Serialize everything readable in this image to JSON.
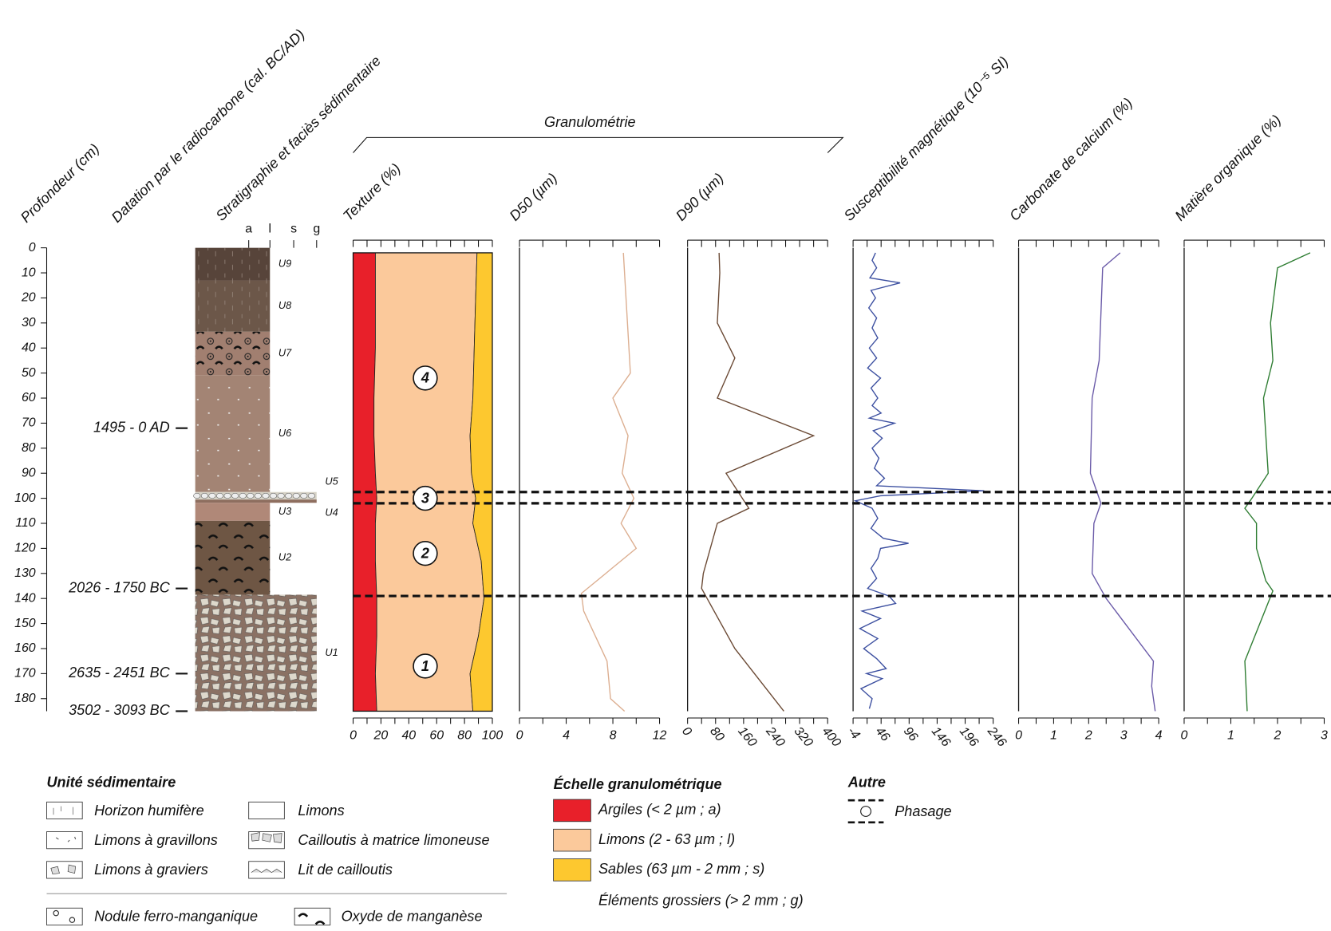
{
  "chart_data": [
    {
      "type": "depth-axis",
      "title": "Profondeur (cm)",
      "ylim": [
        0,
        185
      ],
      "yticks": [
        0,
        10,
        20,
        30,
        40,
        50,
        60,
        70,
        80,
        90,
        100,
        110,
        120,
        130,
        140,
        150,
        160,
        170,
        180
      ]
    },
    {
      "type": "dates",
      "title": "Datation par le radiocarbone (cal. BC/AD)",
      "labels": [
        "1495 - 0 AD",
        "2026 - 1750 BC",
        "2635 - 2451 BC",
        "3502 - 3093 BC"
      ],
      "depths": [
        72,
        136,
        170,
        185
      ]
    },
    {
      "type": "strat",
      "title": "Stratigraphie et faciès sédimentaire",
      "columns": [
        "a",
        "l",
        "s",
        "g"
      ],
      "units": [
        {
          "name": "U9",
          "top": 0,
          "bottom": 13,
          "grain": "l",
          "color": "#57443a"
        },
        {
          "name": "U8",
          "top": 13,
          "bottom": 33.5,
          "grain": "l",
          "color": "#6c5749"
        },
        {
          "name": "U7",
          "top": 33.5,
          "bottom": 51,
          "grain": "l",
          "color": "#a17f70"
        },
        {
          "name": "U6",
          "top": 51,
          "bottom": 97.5,
          "grain": "l",
          "color": "#a38474"
        },
        {
          "name": "U5",
          "top": 97.5,
          "bottom": 100.5,
          "grain": "g",
          "color": "#d6d2c6"
        },
        {
          "name": "U4",
          "top": 100.5,
          "bottom": 101.8,
          "grain": "g",
          "color": "#8e6e5f"
        },
        {
          "name": "U3",
          "top": 101.8,
          "bottom": 109,
          "grain": "l",
          "color": "#b08878"
        },
        {
          "name": "U2",
          "top": 109,
          "bottom": 138.5,
          "grain": "l",
          "color": "#6e5644"
        },
        {
          "name": "U1",
          "top": 138.5,
          "bottom": 185,
          "grain": "g",
          "color": "#8a7164"
        }
      ]
    },
    {
      "type": "stacked-area",
      "title": "Texture (%)",
      "xlim": [
        0,
        100
      ],
      "xticks": [
        0,
        20,
        40,
        60,
        80,
        100
      ],
      "xminor": [
        10,
        30,
        50,
        70,
        90
      ],
      "depths": [
        2,
        20,
        40,
        60,
        75,
        90,
        100,
        110,
        125,
        140,
        155,
        170,
        185
      ],
      "series": [
        {
          "name": "Argiles (< 2 µm ; a)",
          "color": "#e8202a",
          "values": [
            16,
            16,
            16,
            15,
            15,
            16,
            17,
            16,
            16,
            17,
            17,
            16,
            17
          ]
        },
        {
          "name": "Limons (2 - 63 µm ; l)",
          "color": "#fbc99b",
          "values": [
            73,
            72,
            71,
            71,
            69,
            69,
            71,
            70,
            76,
            77,
            73,
            68,
            69
          ]
        },
        {
          "name": "Sables (63 µm - 2 mm ; s)",
          "color": "#fdc82f",
          "values": [
            11,
            12,
            13,
            14,
            16,
            15,
            12,
            14,
            8,
            6,
            10,
            16,
            14
          ]
        }
      ]
    },
    {
      "type": "line",
      "title": "D50 (µm)",
      "xlim": [
        0,
        12
      ],
      "xticks": [
        0,
        4,
        8,
        12
      ],
      "xminor": [
        2,
        6,
        10
      ],
      "color": "#dcae90",
      "depths": [
        2,
        50,
        60,
        75,
        90,
        100,
        110,
        120,
        138,
        145,
        165,
        180,
        185
      ],
      "values": [
        8.9,
        9.5,
        8,
        9.3,
        8.8,
        9.8,
        8.7,
        10,
        5.3,
        5.5,
        7.5,
        7.8,
        9
      ]
    },
    {
      "type": "line",
      "title": "D90 (µm)",
      "xlim": [
        0,
        400
      ],
      "xticks": [
        0,
        80,
        160,
        240,
        320,
        400
      ],
      "xminor": [
        40,
        120,
        200,
        280,
        360
      ],
      "color": "#6b4a35",
      "depths": [
        2,
        10,
        30,
        44,
        60,
        75,
        90,
        104,
        110,
        130,
        136,
        160,
        185
      ],
      "values": [
        90,
        92,
        85,
        135,
        85,
        360,
        110,
        175,
        85,
        45,
        40,
        135,
        275
      ]
    },
    {
      "type": "line",
      "title": "Susceptibilité magnétique (10⁻⁵ SI)",
      "xlim": [
        -4,
        246
      ],
      "xticks": [
        -4,
        46,
        96,
        146,
        196,
        246
      ],
      "xminor": [
        21,
        71,
        121,
        171,
        221
      ],
      "color": "#3c4fa0",
      "depths": [
        2,
        5,
        8,
        12,
        14,
        17,
        20,
        24,
        28,
        32,
        36,
        40,
        44,
        48,
        52,
        56,
        60,
        63,
        66,
        68,
        70,
        73,
        76,
        80,
        84,
        88,
        92,
        95,
        97,
        99,
        101,
        104,
        108,
        112,
        116,
        118,
        120,
        124,
        128,
        132,
        136,
        139,
        142,
        145,
        148,
        152,
        156,
        160,
        164,
        168,
        170,
        172,
        176,
        180,
        184
      ],
      "values": [
        36,
        30,
        38,
        26,
        80,
        28,
        36,
        24,
        38,
        30,
        40,
        25,
        38,
        22,
        45,
        28,
        40,
        30,
        46,
        25,
        70,
        32,
        48,
        30,
        42,
        34,
        52,
        38,
        230,
        45,
        0,
        30,
        40,
        28,
        50,
        95,
        45,
        40,
        28,
        38,
        22,
        60,
        72,
        12,
        45,
        8,
        40,
        15,
        38,
        55,
        20,
        48,
        10,
        30,
        25
      ]
    },
    {
      "type": "line",
      "title": "Carbonate de calcium (%)",
      "xlim": [
        0,
        4
      ],
      "xticks": [
        0,
        1,
        2,
        3,
        4
      ],
      "xminor": [
        0.5,
        1.5,
        2.5,
        3.5
      ],
      "color": "#6a5aa8",
      "depths": [
        2,
        8,
        45,
        60,
        90,
        102,
        110,
        130,
        140,
        165,
        175,
        185
      ],
      "values": [
        2.9,
        2.4,
        2.3,
        2.1,
        2.05,
        2.35,
        2.15,
        2.1,
        2.5,
        3.85,
        3.8,
        3.9
      ]
    },
    {
      "type": "line",
      "title": "Matière organique (%)",
      "xlim": [
        0,
        3
      ],
      "xticks": [
        0,
        1,
        2,
        3
      ],
      "xminor": [
        0.5,
        1.5,
        2.5
      ],
      "color": "#2e7d32",
      "depths": [
        2,
        8,
        30,
        45,
        60,
        90,
        100,
        104,
        110,
        120,
        133,
        137,
        165,
        185
      ],
      "values": [
        2.7,
        2.0,
        1.85,
        1.9,
        1.7,
        1.8,
        1.45,
        1.3,
        1.55,
        1.55,
        1.75,
        1.9,
        1.3,
        1.35
      ]
    }
  ],
  "granulometry": {
    "title": "Granulométrie"
  },
  "phases": {
    "labels": [
      "4",
      "3",
      "2",
      "1"
    ],
    "depths": [
      52,
      100,
      122,
      167
    ],
    "boundaries": [
      97.5,
      102,
      139
    ]
  },
  "legend": {
    "units": {
      "title": "Unité sédimentaire",
      "items": [
        "Horizon humifère",
        "Limons",
        "Limons à gravillons",
        "Cailloutis à matrice limoneuse",
        "Limons à graviers",
        "Lit de cailloutis",
        "Nodule ferro-manganique",
        "Oxyde de manganèse"
      ]
    },
    "scale": {
      "title": "Échelle granulométrique",
      "extra": "Éléments grossiers (> 2 mm ; g)"
    },
    "other": {
      "title": "Autre",
      "items": [
        "Phasage"
      ]
    }
  }
}
